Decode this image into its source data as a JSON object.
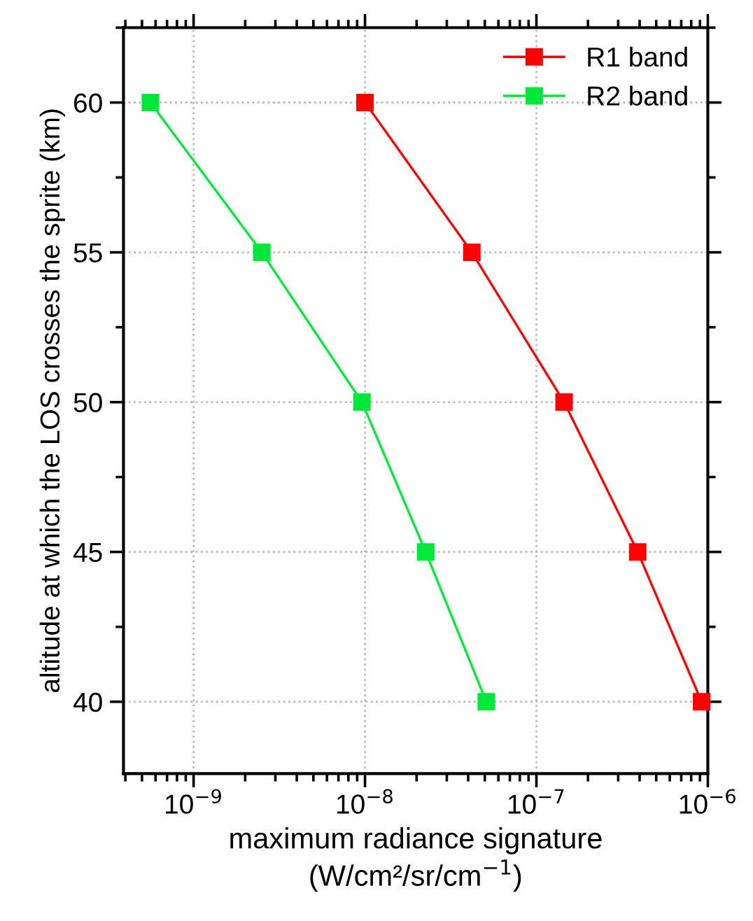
{
  "chart_data": {
    "type": "line",
    "xlabel": "maximum radiance signature\n(W/cm²/sr/cm$^{−1}$)",
    "ylabel": "altitude at which the LOS crosses the sprite (km)",
    "series": [
      {
        "name": "R1 band",
        "color": "#ff0000",
        "x": [
          1e-08,
          4.2e-08,
          1.45e-07,
          3.9e-07,
          9.2e-07
        ],
        "values": [
          60,
          55,
          50,
          45,
          40
        ]
      },
      {
        "name": "R2 band",
        "color": "#00e83a",
        "x": [
          5.6e-10,
          2.5e-09,
          9.6e-09,
          2.26e-08,
          5.1e-08
        ],
        "values": [
          60,
          55,
          50,
          45,
          40
        ]
      }
    ],
    "log": "x",
    "xlim": [
      3.9e-10,
      1e-06
    ],
    "xticks": [
      {
        "value": 1e-09,
        "label": "10$^{−9}$"
      },
      {
        "value": 1e-08,
        "label": "10$^{−8}$"
      },
      {
        "value": 1e-07,
        "label": "10$^{−7}$"
      },
      {
        "value": 1e-06,
        "label": "10$^{−6}$"
      }
    ],
    "ylim": [
      37.6,
      62.5
    ],
    "yticks": [
      40,
      45,
      50,
      55,
      60
    ],
    "grid": true,
    "legend": "top right",
    "marker": "square",
    "line_style": "solid"
  }
}
